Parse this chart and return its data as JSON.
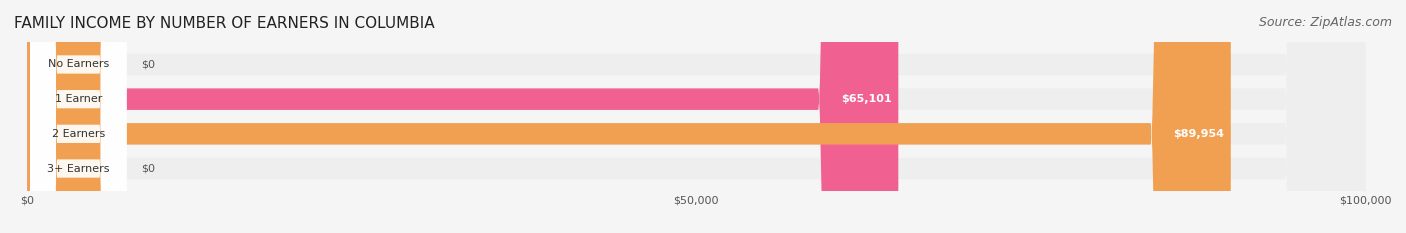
{
  "title": "FAMILY INCOME BY NUMBER OF EARNERS IN COLUMBIA",
  "source": "Source: ZipAtlas.com",
  "categories": [
    "No Earners",
    "1 Earner",
    "2 Earners",
    "3+ Earners"
  ],
  "values": [
    0,
    65101,
    89954,
    0
  ],
  "bar_colors": [
    "#9999cc",
    "#f06090",
    "#f0a050",
    "#f08080"
  ],
  "label_colors": [
    "#9999cc",
    "#f06090",
    "#f0a050",
    "#f08080"
  ],
  "bar_label_bg": [
    "#aaaadd",
    "#e060a0",
    "#e09040",
    "#e07070"
  ],
  "value_labels": [
    "$0",
    "$65,101",
    "$89,954",
    "$0"
  ],
  "xlim": [
    0,
    100000
  ],
  "xticks": [
    0,
    50000,
    100000
  ],
  "xtick_labels": [
    "$0",
    "$50,000",
    "$100,000"
  ],
  "background_color": "#f5f5f5",
  "bar_bg_color": "#eeeeee",
  "title_fontsize": 11,
  "source_fontsize": 9
}
